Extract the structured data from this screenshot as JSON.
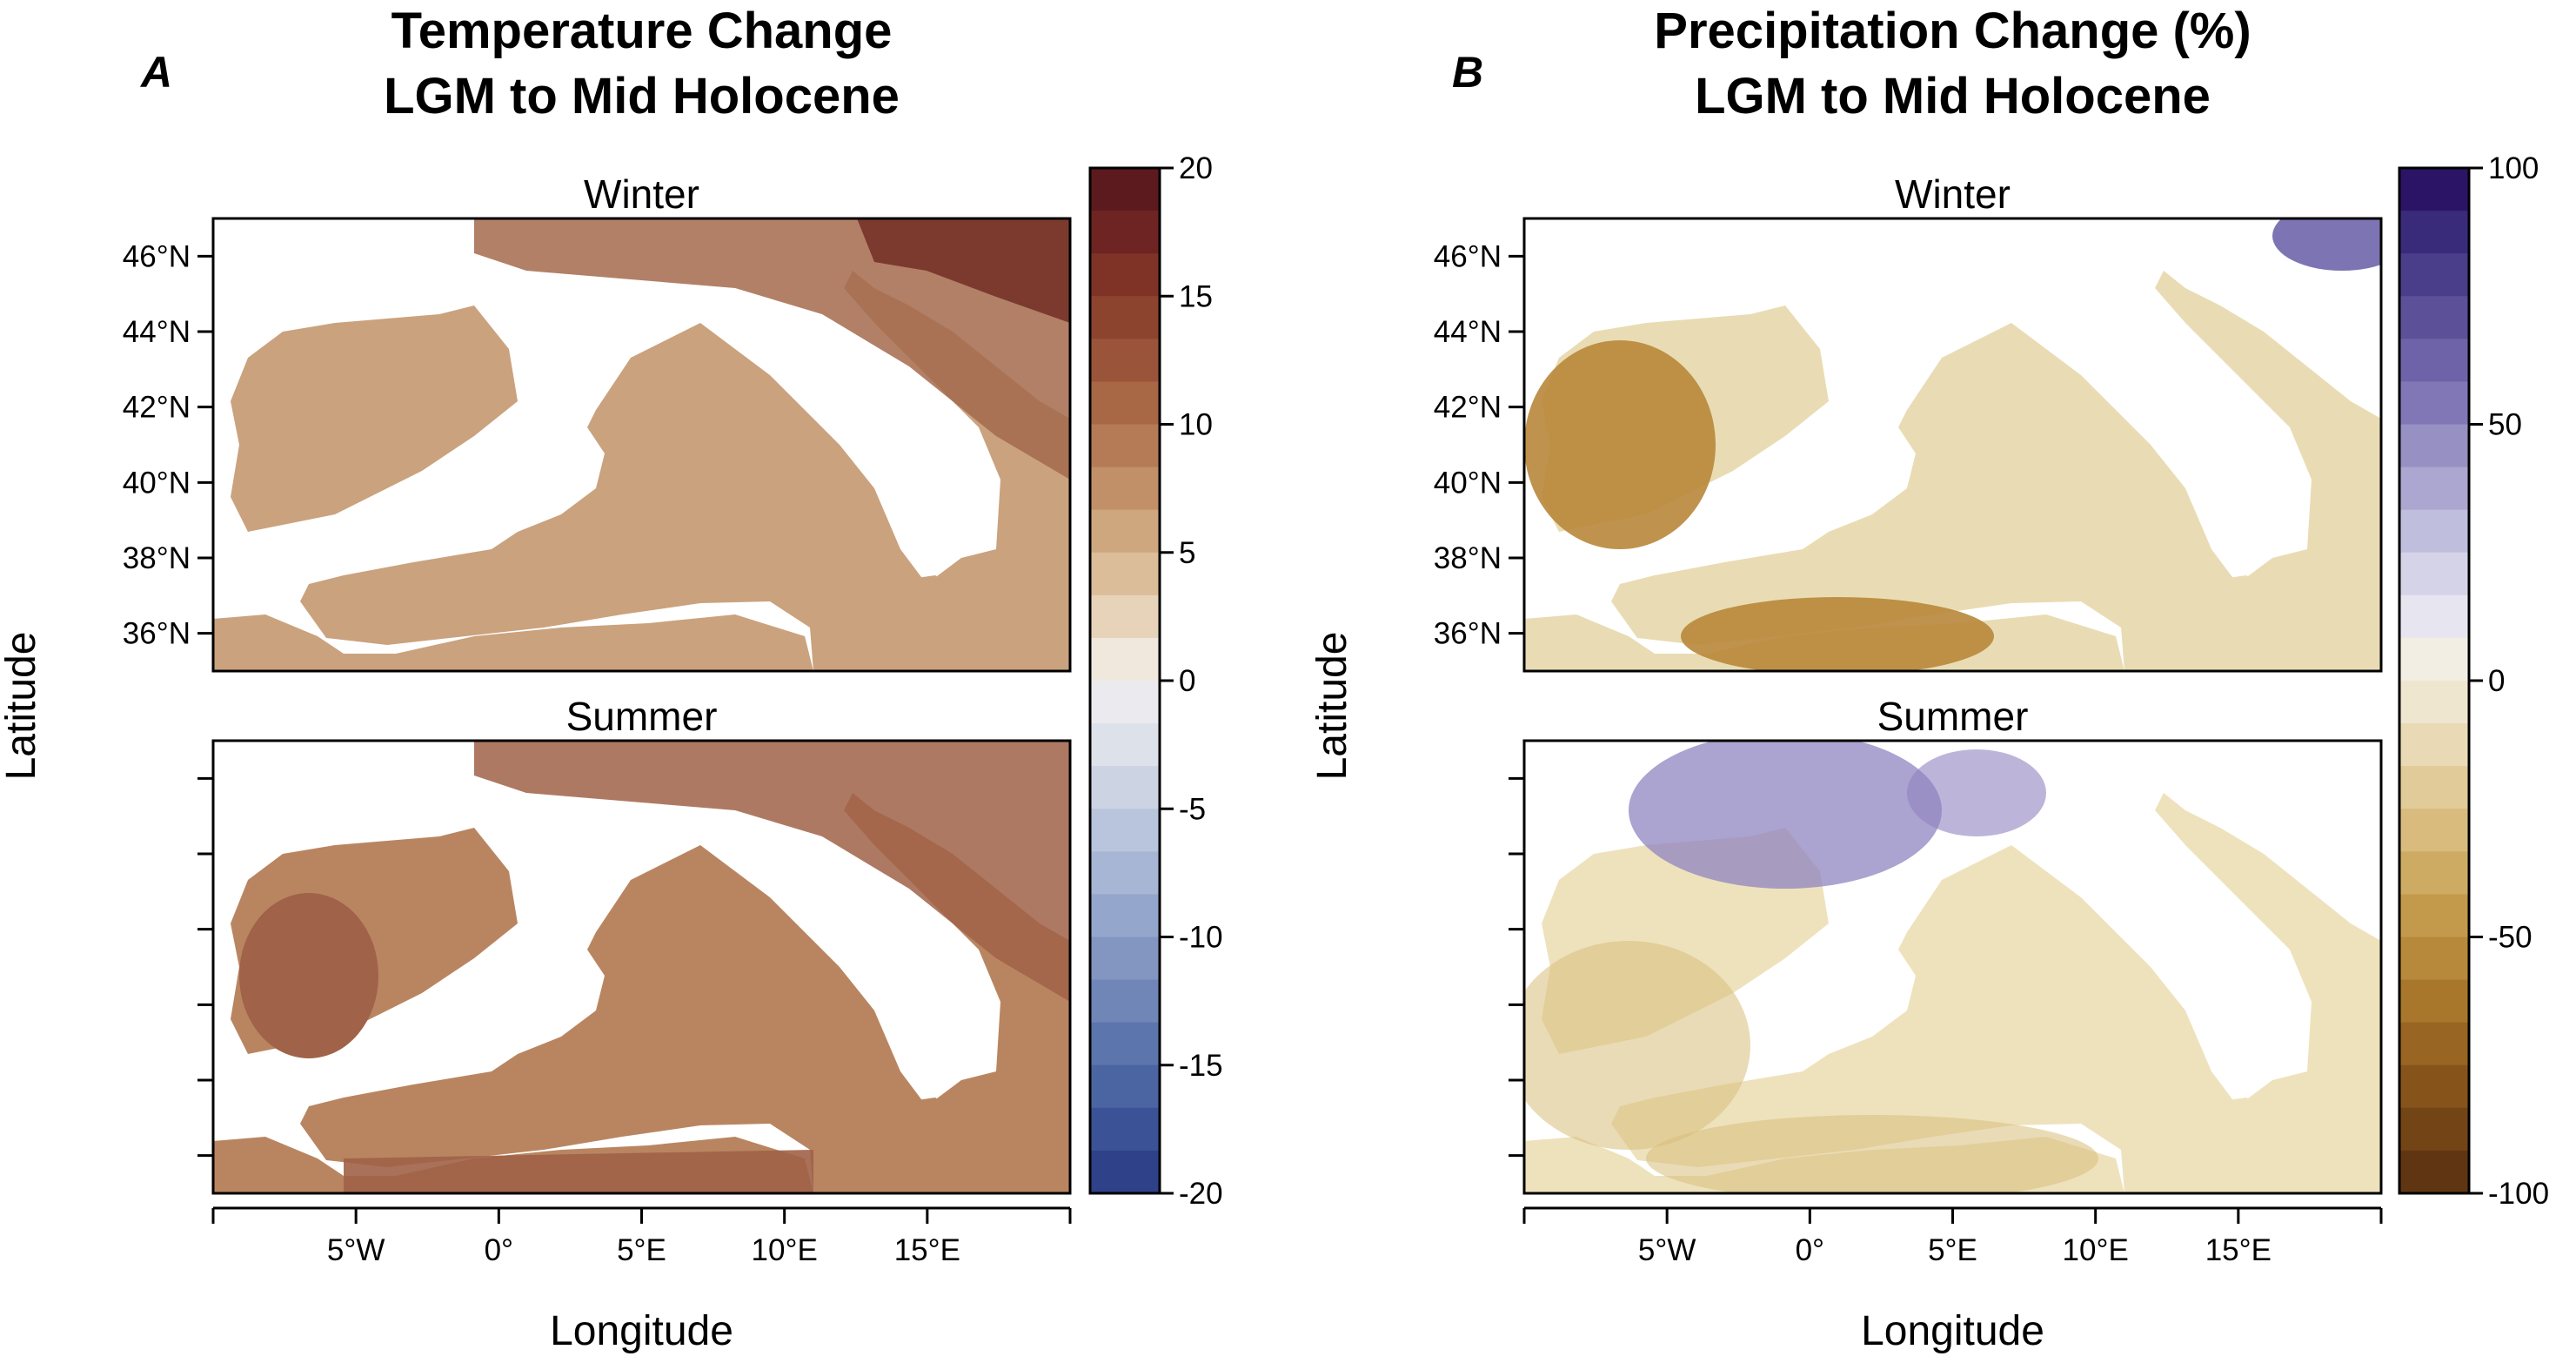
{
  "panels": [
    {
      "id": "A",
      "label": "A",
      "title_line1": "Temperature Change",
      "title_line2": "LGM to Mid Holocene",
      "variable": "temperature change",
      "maps": [
        {
          "season": "Winter",
          "land_fill": "#caa27e",
          "warm_fill": "#a46a4c",
          "hot_fill": "#7c3a2e"
        },
        {
          "season": "Summer",
          "land_fill": "#b98561",
          "warm_fill": "#a06248",
          "hot_fill": "#a06248"
        }
      ],
      "xlabel": "Longitude",
      "ylabel": "Latitude",
      "x_ticks": [
        "5°W",
        "0°",
        "5°E",
        "10°E",
        "15°E"
      ],
      "y_ticks": [
        "46°N",
        "44°N",
        "42°N",
        "40°N",
        "38°N",
        "36°N"
      ],
      "colorbar": {
        "ticks": [
          "20",
          "15",
          "10",
          "5",
          "0",
          "-5",
          "-10",
          "-15",
          "-20"
        ],
        "range": [
          -20,
          20
        ],
        "colors_top_to_bottom": [
          "#5c1a1f",
          "#6d2422",
          "#7e3326",
          "#8d442f",
          "#9a5439",
          "#a86745",
          "#b57b56",
          "#c29068",
          "#cfa77f",
          "#dbbd9a",
          "#e6d3ba",
          "#f1e8dd",
          "#ebebef",
          "#dde1ea",
          "#ccd3e3",
          "#b9c5dc",
          "#a7b6d4",
          "#94a6cb",
          "#8296c1",
          "#6f86b7",
          "#5c75ad",
          "#4b64a2",
          "#3b5396",
          "#2e4189"
        ]
      }
    },
    {
      "id": "B",
      "label": "B",
      "title_line1": "Precipitation Change (%)",
      "title_line2": "LGM to Mid Holocene",
      "variable": "precipitation change (%)",
      "maps": [
        {
          "season": "Winter",
          "land_fill": "#e9dcb4",
          "dry_fill": "#b8873a",
          "wet_fill": "#7d74b3"
        },
        {
          "season": "Summer",
          "land_fill": "#eee2bd",
          "dry_fill": "#d8bd7c",
          "wet_fill": "#8f84c0"
        }
      ],
      "xlabel": "Longitude",
      "ylabel": "Latitude",
      "x_ticks": [
        "5°W",
        "0°",
        "5°E",
        "10°E",
        "15°E"
      ],
      "y_ticks": [
        "46°N",
        "44°N",
        "42°N",
        "40°N",
        "38°N",
        "36°N"
      ],
      "colorbar": {
        "ticks": [
          "100",
          "50",
          "0",
          "-50",
          "-100"
        ],
        "range": [
          -100,
          100
        ],
        "colors_top_to_bottom": [
          "#2b1466",
          "#3a2a7a",
          "#4a3d8a",
          "#5c5099",
          "#6e63a8",
          "#8177b6",
          "#9690c3",
          "#aba7d0",
          "#c0bedd",
          "#d5d3e8",
          "#e7e6f0",
          "#f2eee4",
          "#efe6cf",
          "#e9dab5",
          "#e1cb98",
          "#d8bb7d",
          "#ceab63",
          "#c39a4c",
          "#b7893a",
          "#a9772c",
          "#986522",
          "#86541b",
          "#734416",
          "#603612"
        ]
      }
    }
  ]
}
